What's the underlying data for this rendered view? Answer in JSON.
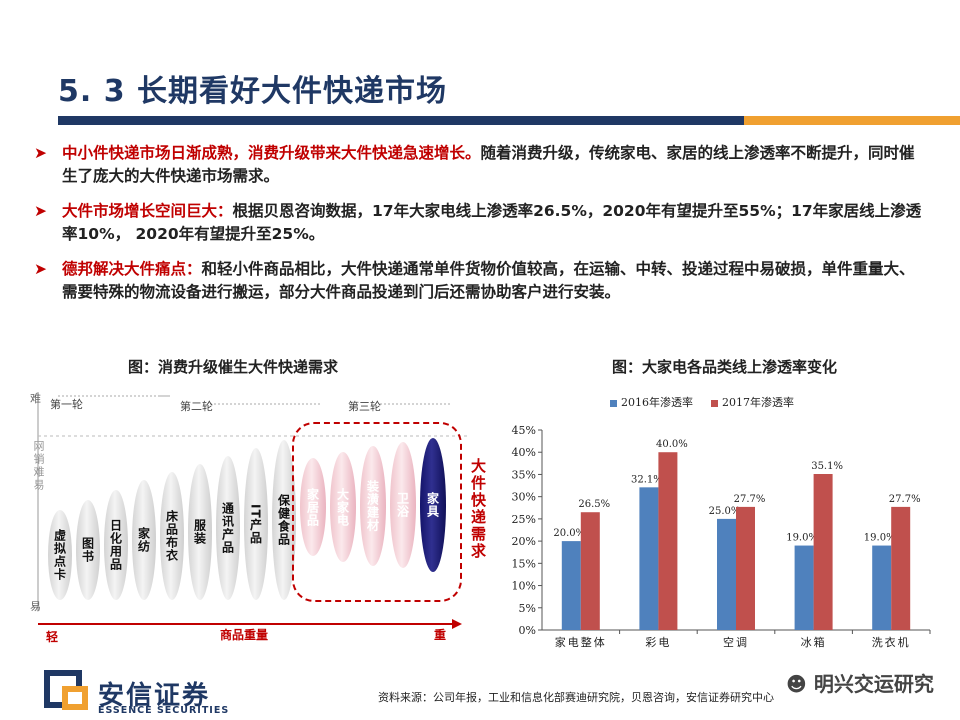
{
  "title": "5. 3 长期看好大件快递市场",
  "bullets": [
    {
      "highlight": "中小件快递市场日渐成熟，消费升级带来大件快递急速增长。",
      "text": "随着消费升级，传统家电、家居的线上渗透率不断提升，同时催生了庞大的大件快递市场需求。"
    },
    {
      "highlight": "大件市场增长空间巨大：",
      "text": "根据贝恩咨询数据，17年大家电线上渗透率26.5%，2020年有望提升至55%；17年家居线上渗透率10%， 2020年有望提升至25%。"
    },
    {
      "highlight": "德邦解决大件痛点：",
      "text": "和轻小件商品相比，大件快递通常单件货物价值较高，在运输、中转、投递过程中易破损，单件重量大、需要特殊的物流设备进行搬运，部分大件商品投递到门后还需协助客户进行安装。"
    }
  ],
  "left_figure": {
    "title": "图：消费升级催生大件快递需求",
    "y_top": "难",
    "y_mid": "网销难易",
    "y_bottom": "易",
    "x_left": "轻",
    "x_mid": "商品重量",
    "x_right": "重",
    "rounds": [
      "第一轮",
      "第二轮",
      "第三轮"
    ],
    "items": [
      "虚拟点卡",
      "图书",
      "日化用品",
      "家纺",
      "床品布衣",
      "服装",
      "通讯产品",
      "IT产品",
      "保健食品",
      "家居品",
      "大家电",
      "装潢建材",
      "卫浴",
      "家具"
    ],
    "note": "大件快递需求"
  },
  "right_figure": {
    "title": "图：大家电各品类线上渗透率变化"
  },
  "chart_data": {
    "type": "bar",
    "categories": [
      "家电整体",
      "彩电",
      "空调",
      "冰箱",
      "洗衣机"
    ],
    "series": [
      {
        "name": "2016年渗透率",
        "values": [
          20.0,
          32.1,
          25.0,
          19.0,
          19.0
        ],
        "labels": [
          "20.0%",
          "32.1%",
          "25.0%",
          "19.0%",
          "19.0%"
        ],
        "color": "#4f81bd"
      },
      {
        "name": "2017年渗透率",
        "values": [
          26.5,
          40.0,
          27.7,
          35.1,
          27.7
        ],
        "labels": [
          "26.5%",
          "40.0%",
          "27.7%",
          "35.1%",
          "27.7%"
        ],
        "color": "#c0504d"
      }
    ],
    "ylim": [
      0,
      45
    ],
    "yticks": [
      "0%",
      "5%",
      "10%",
      "15%",
      "20%",
      "25%",
      "30%",
      "35%",
      "40%",
      "45%"
    ],
    "legend": "top"
  },
  "footer": {
    "logo_cn": "安信证券",
    "logo_en": "ESSENCE SECURITIES",
    "source": "资料来源：公司年报，工业和信息化部赛迪研究院，贝恩咨询，安信证券研究中心",
    "watermark": "明兴交运研究"
  }
}
